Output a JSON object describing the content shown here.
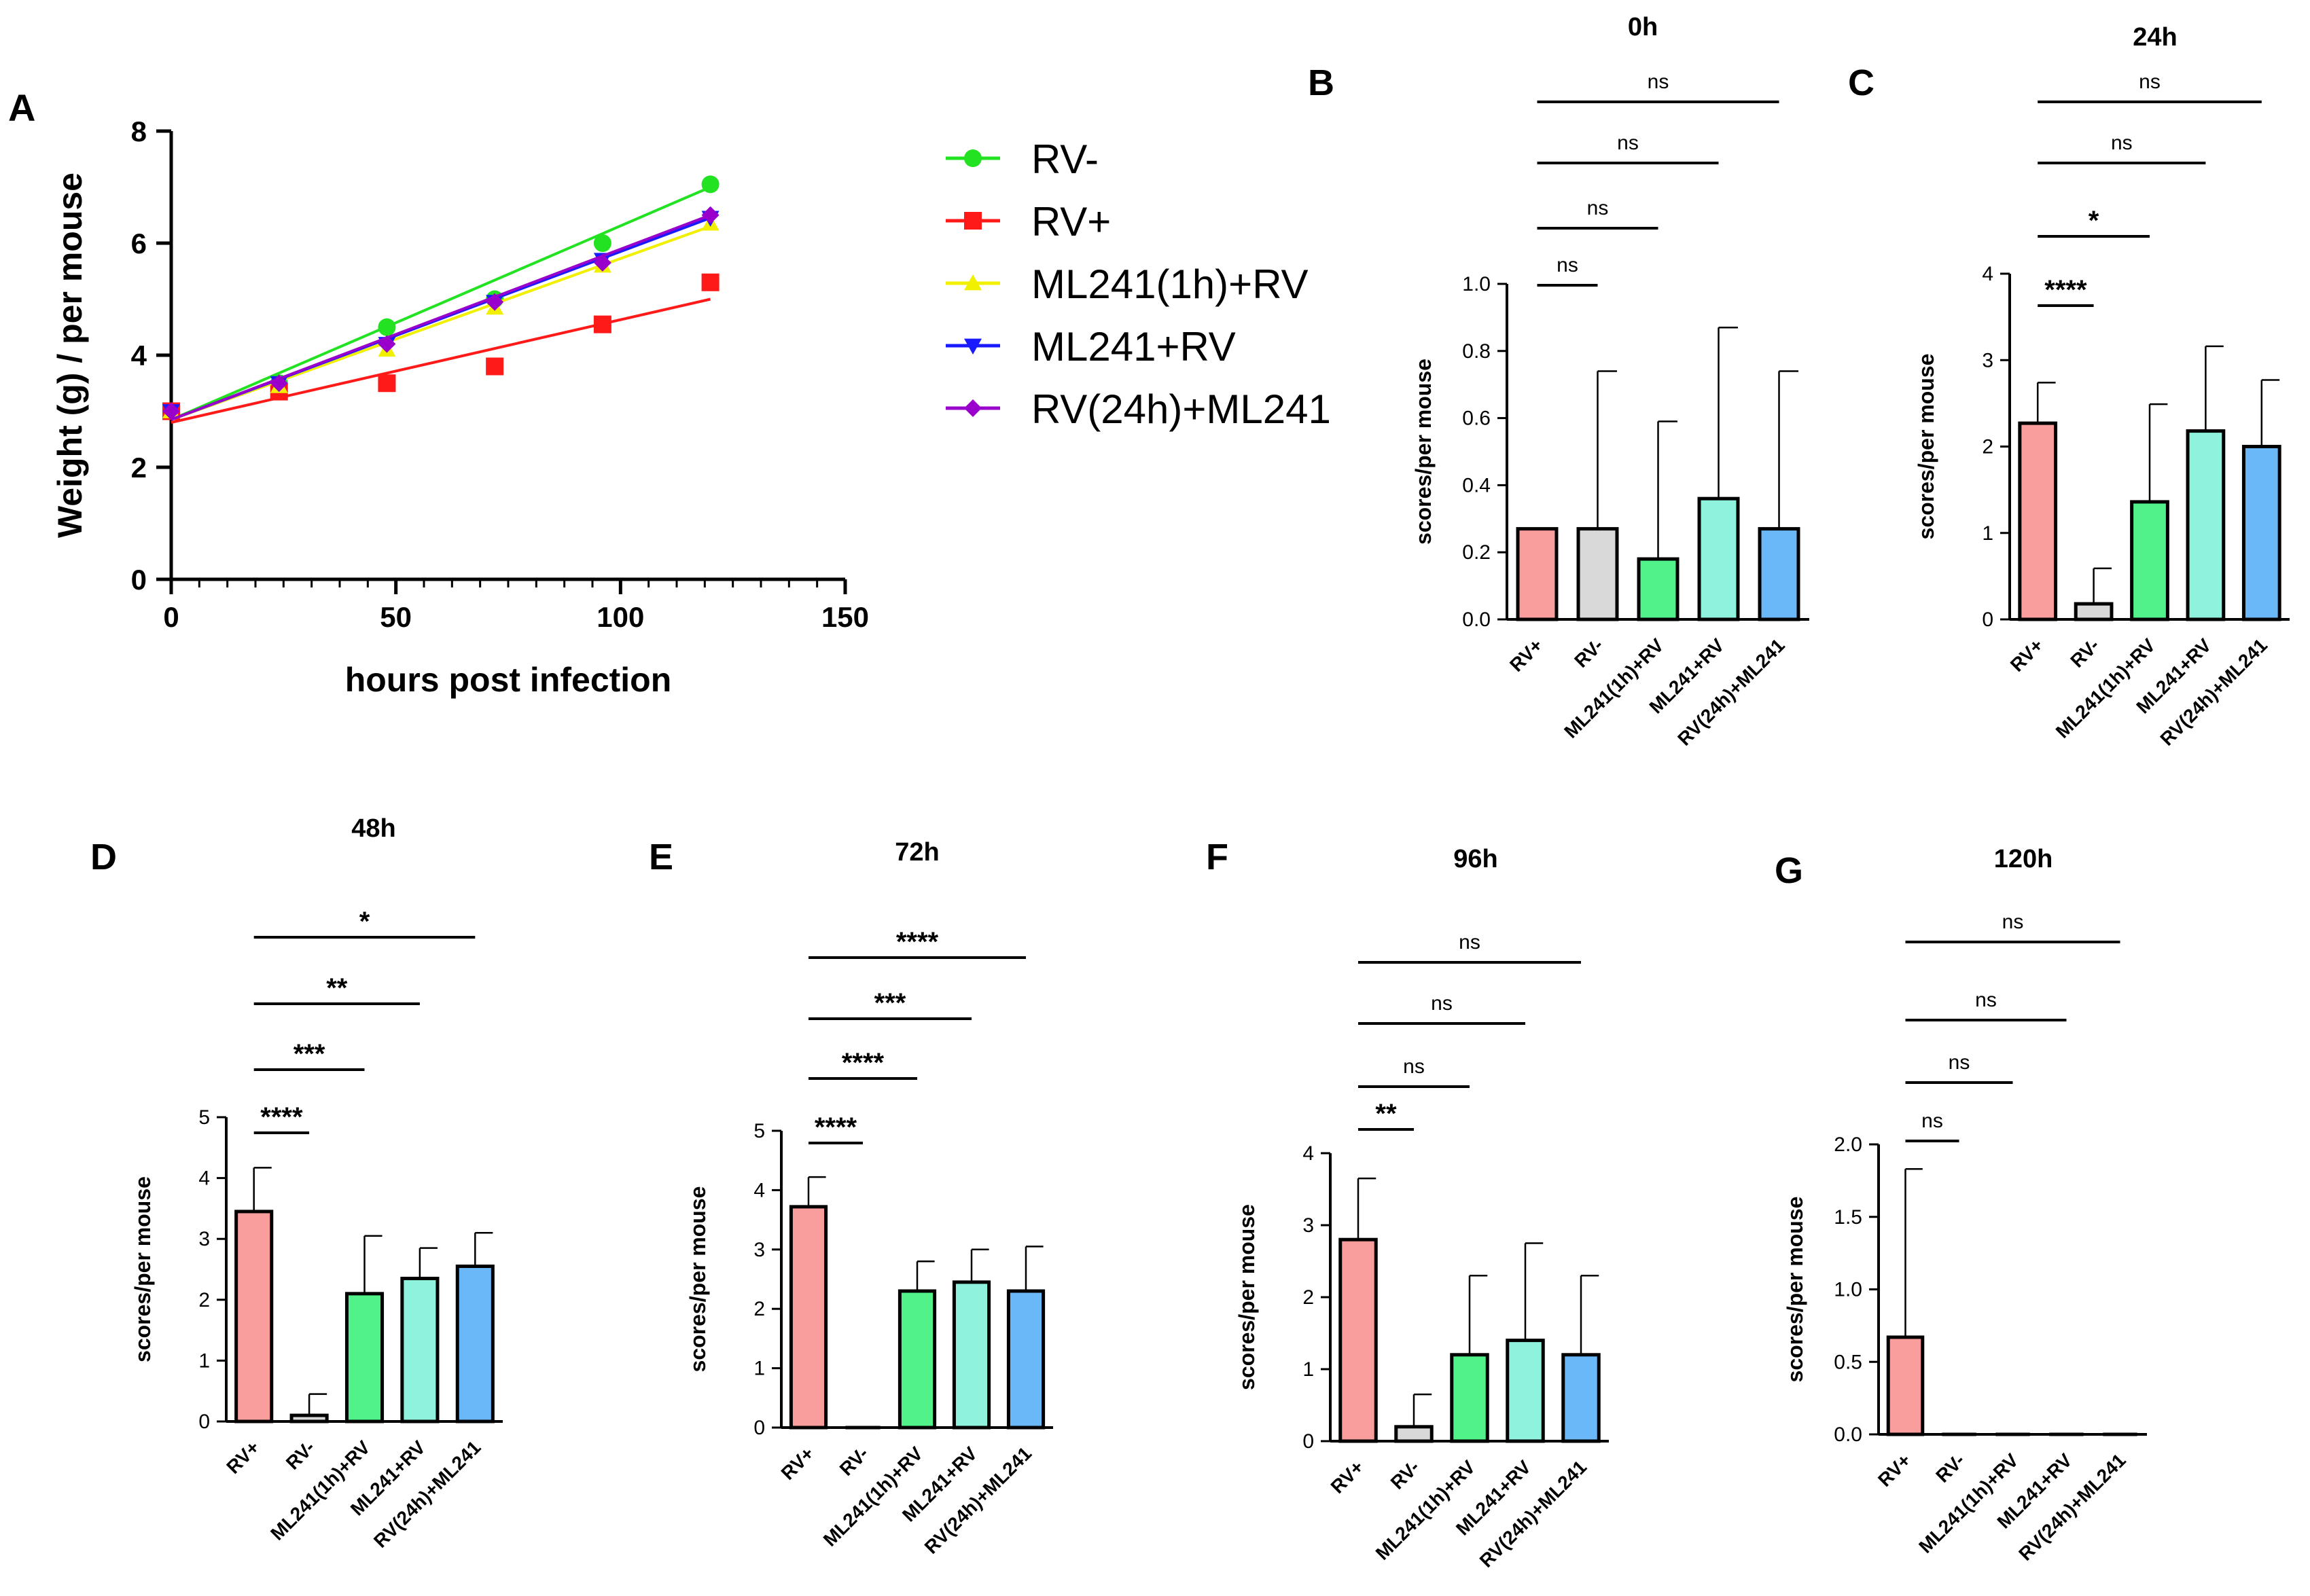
{
  "figure": {
    "panel_a": {
      "letter": "A",
      "chart_data": {
        "type": "scatter",
        "title": "",
        "xlabel": "hours post infection",
        "ylabel": "Weight (g) / per mouse",
        "xlim": [
          0,
          150
        ],
        "ylim": [
          0,
          8
        ],
        "xticks": [
          0,
          50,
          100,
          150
        ],
        "yticks": [
          0,
          2,
          4,
          6,
          8
        ],
        "legend_position": "right",
        "series": [
          {
            "name": "RV-",
            "color": "#22e222",
            "marker": "circle",
            "x": [
              0,
              24,
              48,
              72,
              96,
              120
            ],
            "y": [
              3.0,
              3.5,
              4.5,
              5.0,
              6.0,
              7.05
            ],
            "fit": [
              2.85,
              7.0
            ]
          },
          {
            "name": "RV+",
            "color": "#ff1a1a",
            "marker": "square",
            "x": [
              0,
              24,
              48,
              72,
              96,
              120
            ],
            "y": [
              3.0,
              3.35,
              3.5,
              3.8,
              4.55,
              5.3
            ],
            "fit": [
              2.8,
              5.0
            ]
          },
          {
            "name": "ML241(1h)+RV",
            "color": "#f0f000",
            "marker": "triangle-up",
            "x": [
              0,
              24,
              48,
              72,
              96,
              120
            ],
            "y": [
              3.0,
              3.45,
              4.1,
              4.85,
              5.6,
              6.35
            ],
            "fit": [
              2.85,
              6.3
            ]
          },
          {
            "name": "ML241+RV",
            "color": "#1a1aff",
            "marker": "triangle-down",
            "x": [
              0,
              24,
              48,
              72,
              96,
              120
            ],
            "y": [
              3.0,
              3.5,
              4.2,
              4.95,
              5.7,
              6.45
            ],
            "fit": [
              2.85,
              6.45
            ]
          },
          {
            "name": "RV(24h)+ML241",
            "color": "#9900cc",
            "marker": "diamond",
            "x": [
              0,
              24,
              48,
              72,
              96,
              120
            ],
            "y": [
              3.0,
              3.5,
              4.2,
              4.95,
              5.65,
              6.5
            ],
            "fit": [
              2.85,
              6.5
            ]
          }
        ]
      }
    },
    "bar_panels": [
      {
        "letter": "B",
        "chart_data": {
          "type": "bar",
          "title": "0h",
          "ylabel": "scores/per mouse",
          "categories": [
            "RV+",
            "RV-",
            "ML241(1h)+RV",
            "ML241+RV",
            "RV(24h)+ML241"
          ],
          "values": [
            0.27,
            0.27,
            0.18,
            0.36,
            0.27
          ],
          "errors": [
            0.0,
            0.47,
            0.41,
            0.51,
            0.47
          ],
          "ylim": [
            0,
            1.0
          ],
          "yticks": [
            "0.0",
            "0.2",
            "0.4",
            "0.6",
            "0.8",
            "1.0"
          ],
          "colors": [
            "#fa9d9d",
            "#d9d9d9",
            "#52f28a",
            "#8ef2dc",
            "#6bb8f8"
          ],
          "significance": [
            {
              "from": 0,
              "to": 1,
              "label": "ns"
            },
            {
              "from": 0,
              "to": 2,
              "label": "ns"
            },
            {
              "from": 0,
              "to": 3,
              "label": "ns"
            },
            {
              "from": 0,
              "to": 4,
              "label": "ns"
            }
          ]
        }
      },
      {
        "letter": "C",
        "chart_data": {
          "type": "bar",
          "title": "24h",
          "ylabel": "scores/per mouse",
          "categories": [
            "RV+",
            "RV-",
            "ML241(1h)+RV",
            "ML241+RV",
            "RV(24h)+ML241"
          ],
          "values": [
            2.27,
            0.18,
            1.36,
            2.18,
            2.0
          ],
          "errors": [
            0.47,
            0.41,
            1.13,
            0.98,
            0.77
          ],
          "ylim": [
            0,
            4
          ],
          "yticks": [
            "0",
            "1",
            "2",
            "3",
            "4"
          ],
          "colors": [
            "#fa9d9d",
            "#d9d9d9",
            "#52f28a",
            "#8ef2dc",
            "#6bb8f8"
          ],
          "significance": [
            {
              "from": 0,
              "to": 1,
              "label": "****"
            },
            {
              "from": 0,
              "to": 2,
              "label": "*"
            },
            {
              "from": 0,
              "to": 3,
              "label": "ns"
            },
            {
              "from": 0,
              "to": 4,
              "label": "ns"
            }
          ]
        }
      },
      {
        "letter": "D",
        "chart_data": {
          "type": "bar",
          "title": "48h",
          "ylabel": "scores/per mouse",
          "categories": [
            "RV+",
            "RV-",
            "ML241(1h)+RV",
            "ML241+RV",
            "RV(24h)+ML241"
          ],
          "values": [
            3.45,
            0.1,
            2.1,
            2.35,
            2.55
          ],
          "errors": [
            0.72,
            0.35,
            0.95,
            0.5,
            0.55
          ],
          "ylim": [
            0,
            5
          ],
          "yticks": [
            "0",
            "1",
            "2",
            "3",
            "4",
            "5"
          ],
          "colors": [
            "#fa9d9d",
            "#d9d9d9",
            "#52f28a",
            "#8ef2dc",
            "#6bb8f8"
          ],
          "significance": [
            {
              "from": 0,
              "to": 1,
              "label": "****"
            },
            {
              "from": 0,
              "to": 2,
              "label": "***"
            },
            {
              "from": 0,
              "to": 3,
              "label": "**"
            },
            {
              "from": 0,
              "to": 4,
              "label": "*"
            }
          ]
        }
      },
      {
        "letter": "E",
        "chart_data": {
          "type": "bar",
          "title": "72h",
          "ylabel": "scores/per mouse",
          "categories": [
            "RV+",
            "RV-",
            "ML241(1h)+RV",
            "ML241+RV",
            "RV(24h)+ML241"
          ],
          "values": [
            3.72,
            0.0,
            2.3,
            2.45,
            2.3
          ],
          "errors": [
            0.5,
            0.0,
            0.5,
            0.55,
            0.75
          ],
          "ylim": [
            0,
            5
          ],
          "yticks": [
            "0",
            "1",
            "2",
            "3",
            "4",
            "5"
          ],
          "colors": [
            "#fa9d9d",
            "#d9d9d9",
            "#52f28a",
            "#8ef2dc",
            "#6bb8f8"
          ],
          "significance": [
            {
              "from": 0,
              "to": 1,
              "label": "****"
            },
            {
              "from": 0,
              "to": 2,
              "label": "****"
            },
            {
              "from": 0,
              "to": 3,
              "label": "***"
            },
            {
              "from": 0,
              "to": 4,
              "label": "****"
            }
          ]
        }
      },
      {
        "letter": "F",
        "chart_data": {
          "type": "bar",
          "title": "96h",
          "ylabel": "scores/per mouse",
          "categories": [
            "RV+",
            "RV-",
            "ML241(1h)+RV",
            "ML241+RV",
            "RV(24h)+ML241"
          ],
          "values": [
            2.8,
            0.2,
            1.2,
            1.4,
            1.2
          ],
          "errors": [
            0.85,
            0.45,
            1.1,
            1.35,
            1.1
          ],
          "ylim": [
            0,
            4
          ],
          "yticks": [
            "0",
            "1",
            "2",
            "3",
            "4"
          ],
          "colors": [
            "#fa9d9d",
            "#d9d9d9",
            "#52f28a",
            "#8ef2dc",
            "#6bb8f8"
          ],
          "significance": [
            {
              "from": 0,
              "to": 1,
              "label": "**"
            },
            {
              "from": 0,
              "to": 2,
              "label": "ns"
            },
            {
              "from": 0,
              "to": 3,
              "label": "ns"
            },
            {
              "from": 0,
              "to": 4,
              "label": "ns"
            }
          ]
        }
      },
      {
        "letter": "G",
        "chart_data": {
          "type": "bar",
          "title": "120h",
          "ylabel": "scores/per mouse",
          "categories": [
            "RV+",
            "RV-",
            "ML241(1h)+RV",
            "ML241+RV",
            "RV(24h)+ML241"
          ],
          "values": [
            0.67,
            0.0,
            0.0,
            0.0,
            0.0
          ],
          "errors": [
            1.16,
            0.0,
            0.0,
            0.0,
            0.0
          ],
          "ylim": [
            0,
            2.0
          ],
          "yticks": [
            "0.0",
            "0.5",
            "1.0",
            "1.5",
            "2.0"
          ],
          "colors": [
            "#fa9d9d",
            "#d9d9d9",
            "#52f28a",
            "#8ef2dc",
            "#6bb8f8"
          ],
          "significance": [
            {
              "from": 0,
              "to": 1,
              "label": "ns"
            },
            {
              "from": 0,
              "to": 2,
              "label": "ns"
            },
            {
              "from": 0,
              "to": 3,
              "label": "ns"
            },
            {
              "from": 0,
              "to": 4,
              "label": "ns"
            }
          ]
        }
      }
    ]
  }
}
